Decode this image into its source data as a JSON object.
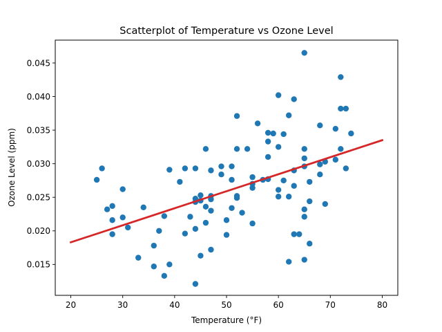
{
  "chart_data": {
    "type": "scatter",
    "title": "Scatterplot of Temperature vs Ozone Level",
    "xlabel": "Temperature (°F)",
    "ylabel": "Ozone Level (ppm)",
    "xlim": [
      17,
      83
    ],
    "ylim": [
      0.0104,
      0.0484
    ],
    "x_ticks": [
      20,
      30,
      40,
      50,
      60,
      70,
      80
    ],
    "y_ticks": [
      0.015,
      0.02,
      0.025,
      0.03,
      0.035,
      0.04,
      0.045
    ],
    "x_tick_labels": [
      "20",
      "30",
      "40",
      "50",
      "60",
      "70",
      "80"
    ],
    "y_tick_labels": [
      "0.015",
      "0.020",
      "0.025",
      "0.030",
      "0.035",
      "0.040",
      "0.045"
    ],
    "grid": false,
    "point_color": "#1f77b4",
    "line_color": "#d62728",
    "series": [
      {
        "type": "scatter",
        "points": [
          [
            25,
            0.0276
          ],
          [
            26,
            0.0293
          ],
          [
            27,
            0.0232
          ],
          [
            28,
            0.0237
          ],
          [
            28,
            0.0216
          ],
          [
            28,
            0.0195
          ],
          [
            30,
            0.0262
          ],
          [
            30,
            0.022
          ],
          [
            31,
            0.0205
          ],
          [
            33,
            0.016
          ],
          [
            34,
            0.0235
          ],
          [
            36,
            0.0178
          ],
          [
            36,
            0.0147
          ],
          [
            37,
            0.02
          ],
          [
            38,
            0.0222
          ],
          [
            38,
            0.0133
          ],
          [
            39,
            0.0291
          ],
          [
            39,
            0.015
          ],
          [
            41,
            0.0273
          ],
          [
            42,
            0.0293
          ],
          [
            42,
            0.0196
          ],
          [
            43,
            0.0221
          ],
          [
            44,
            0.0293
          ],
          [
            44,
            0.0248
          ],
          [
            44,
            0.0243
          ],
          [
            44,
            0.0203
          ],
          [
            44,
            0.0121
          ],
          [
            45,
            0.0253
          ],
          [
            45,
            0.0245
          ],
          [
            45,
            0.0163
          ],
          [
            46,
            0.0322
          ],
          [
            46,
            0.0236
          ],
          [
            46,
            0.0212
          ],
          [
            47,
            0.029
          ],
          [
            47,
            0.0252
          ],
          [
            47,
            0.0247
          ],
          [
            47,
            0.023
          ],
          [
            47,
            0.0172
          ],
          [
            49,
            0.0296
          ],
          [
            49,
            0.0284
          ],
          [
            50,
            0.0216
          ],
          [
            50,
            0.0194
          ],
          [
            51,
            0.0296
          ],
          [
            51,
            0.0276
          ],
          [
            51,
            0.0234
          ],
          [
            52,
            0.0371
          ],
          [
            52,
            0.0322
          ],
          [
            52,
            0.0252
          ],
          [
            52,
            0.0249
          ],
          [
            53,
            0.0227
          ],
          [
            54,
            0.0322
          ],
          [
            55,
            0.028
          ],
          [
            55,
            0.027
          ],
          [
            55,
            0.0264
          ],
          [
            55,
            0.0211
          ],
          [
            56,
            0.036
          ],
          [
            57,
            0.0276
          ],
          [
            58,
            0.0346
          ],
          [
            58,
            0.0333
          ],
          [
            58,
            0.031
          ],
          [
            58,
            0.0277
          ],
          [
            59,
            0.0345
          ],
          [
            60,
            0.0402
          ],
          [
            60,
            0.0325
          ],
          [
            60,
            0.0261
          ],
          [
            60,
            0.0251
          ],
          [
            61,
            0.0344
          ],
          [
            61,
            0.0275
          ],
          [
            62,
            0.0372
          ],
          [
            62,
            0.0251
          ],
          [
            62,
            0.0154
          ],
          [
            63,
            0.0396
          ],
          [
            63,
            0.029
          ],
          [
            63,
            0.0267
          ],
          [
            63,
            0.0195
          ],
          [
            64,
            0.0195
          ],
          [
            65,
            0.0465
          ],
          [
            65,
            0.0322
          ],
          [
            65,
            0.0308
          ],
          [
            65,
            0.0296
          ],
          [
            65,
            0.0232
          ],
          [
            65,
            0.0221
          ],
          [
            65,
            0.0157
          ],
          [
            66,
            0.0273
          ],
          [
            66,
            0.0244
          ],
          [
            66,
            0.0181
          ],
          [
            68,
            0.0357
          ],
          [
            68,
            0.0299
          ],
          [
            68,
            0.0284
          ],
          [
            69,
            0.0303
          ],
          [
            69,
            0.024
          ],
          [
            71,
            0.0352
          ],
          [
            71,
            0.0306
          ],
          [
            72,
            0.0429
          ],
          [
            72,
            0.0382
          ],
          [
            72,
            0.0322
          ],
          [
            73,
            0.0382
          ],
          [
            73,
            0.0293
          ],
          [
            74,
            0.0345
          ]
        ]
      },
      {
        "type": "line",
        "points": [
          [
            20,
            0.0183
          ],
          [
            80,
            0.0335
          ]
        ]
      }
    ]
  }
}
